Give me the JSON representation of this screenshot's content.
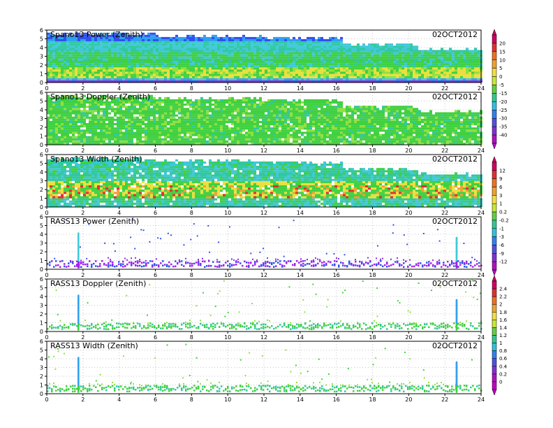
{
  "chart_data": [
    {
      "type": "heatmap",
      "title": "Spano13 Power (Zenith)",
      "date": "02OCT2012",
      "xlim": [
        0,
        24
      ],
      "ylim": [
        0,
        6
      ],
      "xticks": [
        "0",
        "2",
        "4",
        "6",
        "8",
        "10",
        "12",
        "14",
        "16",
        "18",
        "20",
        "22",
        "24"
      ],
      "yticks": [
        "0",
        "1",
        "2",
        "3",
        "4",
        "5",
        "6"
      ],
      "pattern": "profiler",
      "grid": true
    },
    {
      "type": "heatmap",
      "title": "Spano13 Doppler (Zenith)",
      "date": "02OCT2012",
      "xlim": [
        0,
        24
      ],
      "ylim": [
        0,
        6
      ],
      "xticks": [
        "0",
        "2",
        "4",
        "6",
        "8",
        "10",
        "12",
        "14",
        "16",
        "18",
        "20",
        "22",
        "24"
      ],
      "yticks": [
        "0",
        "1",
        "2",
        "3",
        "4",
        "5",
        "6"
      ],
      "pattern": "profiler",
      "grid": true
    },
    {
      "type": "heatmap",
      "title": "Spano13 Width (Zenith)",
      "date": "02OCT2012",
      "xlim": [
        0,
        24
      ],
      "ylim": [
        0,
        6
      ],
      "xticks": [
        "0",
        "2",
        "4",
        "6",
        "8",
        "10",
        "12",
        "14",
        "16",
        "18",
        "20",
        "22",
        "24"
      ],
      "yticks": [
        "0",
        "1",
        "2",
        "3",
        "4",
        "5",
        "6"
      ],
      "pattern": "profiler",
      "grid": true
    },
    {
      "type": "heatmap",
      "title": "RASS13 Power (Zenith)",
      "date": "02OCT2012",
      "xlim": [
        0,
        24
      ],
      "ylim": [
        0,
        6
      ],
      "xticks": [
        "0",
        "2",
        "4",
        "6",
        "8",
        "10",
        "12",
        "14",
        "16",
        "18",
        "20",
        "22",
        "24"
      ],
      "yticks": [
        "0",
        "1",
        "2",
        "3",
        "4",
        "5",
        "6"
      ],
      "pattern": "rass",
      "grid": true
    },
    {
      "type": "heatmap",
      "title": "RASS13 Doppler (Zenith)",
      "date": "02OCT2012",
      "xlim": [
        0,
        24
      ],
      "ylim": [
        0,
        6
      ],
      "xticks": [
        "0",
        "2",
        "4",
        "6",
        "8",
        "10",
        "12",
        "14",
        "16",
        "18",
        "20",
        "22",
        "24"
      ],
      "yticks": [
        "0",
        "1",
        "2",
        "3",
        "4",
        "5",
        "6"
      ],
      "pattern": "rass",
      "grid": true
    },
    {
      "type": "heatmap",
      "title": "RASS13 Width (Zenith)",
      "date": "02OCT2012",
      "xlim": [
        0,
        24
      ],
      "ylim": [
        0,
        6
      ],
      "xticks": [
        "0",
        "2",
        "4",
        "6",
        "8",
        "10",
        "12",
        "14",
        "16",
        "18",
        "20",
        "22",
        "24"
      ],
      "yticks": [
        "0",
        "1",
        "2",
        "3",
        "4",
        "5",
        "6"
      ],
      "pattern": "rass",
      "grid": true
    }
  ],
  "colorbars": [
    {
      "name": "power",
      "labels": [
        "20",
        "15",
        "10",
        "5",
        "0",
        "-5",
        "-15",
        "-20",
        "-25",
        "-30",
        "-35",
        "-40"
      ],
      "colors": [
        "#d00060",
        "#e03030",
        "#f07020",
        "#f0a030",
        "#f0e040",
        "#c8e830",
        "#60d040",
        "#30c890",
        "#30c0e0",
        "#3080f0",
        "#5050e0",
        "#8030d0",
        "#b010c0"
      ]
    },
    {
      "name": "width",
      "labels": [
        "12",
        "9",
        "6",
        "3",
        "1",
        "0.2",
        "-0.2",
        "-1",
        "-3",
        "-6",
        "-9",
        "-12"
      ],
      "colors": [
        "#d00060",
        "#e03030",
        "#f07020",
        "#f0a030",
        "#f0e040",
        "#c8e830",
        "#60d040",
        "#30c890",
        "#30c0e0",
        "#3080f0",
        "#5050e0",
        "#8030d0",
        "#b010c0"
      ]
    },
    {
      "name": "rass",
      "labels": [
        "2.4",
        "2.2",
        "2",
        "1.8",
        "1.6",
        "1.4",
        "1.2",
        "1",
        "0.8",
        "0.6",
        "0.4",
        "0.2",
        "0"
      ],
      "colors": [
        "#d00060",
        "#e03030",
        "#f07020",
        "#f0a030",
        "#f0e040",
        "#c8e830",
        "#60d040",
        "#30c890",
        "#30c0e0",
        "#3080f0",
        "#5050e0",
        "#8030d0",
        "#b010c0",
        "#c000c0"
      ]
    }
  ]
}
